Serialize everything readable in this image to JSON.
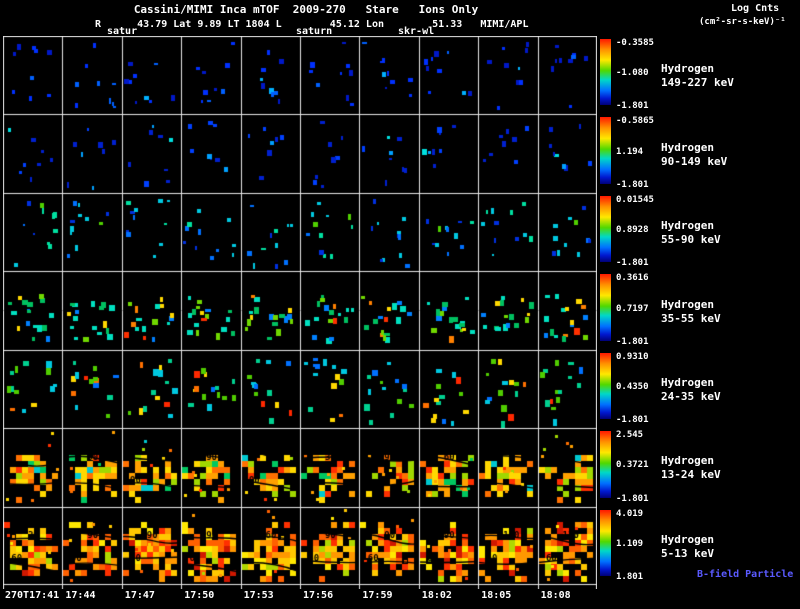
{
  "header": {
    "title": "Cassini/MIMI Inca mTOF  2009-270   Stare   Ions Only",
    "subtitle": "R      43.79 Lat 9.89 LT 1804 L        45.12 Lon        51.33   MIMI/APL",
    "annotations": [
      "satur",
      "saturn",
      "skr-wl"
    ],
    "legend_title": "Log Cnts",
    "legend_units": "(cm²-sr-s-keV)⁻¹"
  },
  "channels": [
    {
      "species": "Hydrogen",
      "energy": "149-227 keV",
      "ticks": [
        "-0.3585",
        "-1.080",
        "-1.801"
      ]
    },
    {
      "species": "Hydrogen",
      "energy": "90-149 keV",
      "ticks": [
        "-0.5865",
        "1.194",
        "-1.801"
      ]
    },
    {
      "species": "Hydrogen",
      "energy": "55-90 keV",
      "ticks": [
        "0.01545",
        "0.8928",
        "-1.801"
      ]
    },
    {
      "species": "Hydrogen",
      "energy": "35-55 keV",
      "ticks": [
        "0.3616",
        "0.7197",
        "-1.801"
      ]
    },
    {
      "species": "Hydrogen",
      "energy": "24-35 keV",
      "ticks": [
        "0.9310",
        "0.4350",
        "-1.801"
      ]
    },
    {
      "species": "Hydrogen",
      "energy": "13-24 keV",
      "ticks": [
        "2.545",
        "0.3721",
        "-1.801"
      ]
    },
    {
      "species": "Hydrogen",
      "energy": "5-13 keV",
      "ticks": [
        "4.019",
        "1.109",
        "1.801"
      ]
    }
  ],
  "time_axis": [
    "270T17:41",
    "17:44",
    "17:47",
    "17:50",
    "17:53",
    "17:56",
    "17:59",
    "18:02",
    "18:05",
    "18:08"
  ],
  "footer": {
    "bfield_label": "B-field Particle Flow"
  },
  "contour_labels": {
    "13_24": [
      [],
      [
        "60"
      ],
      [
        "30",
        "90"
      ],
      [
        "90"
      ],
      [
        "60",
        "90"
      ],
      [
        "30"
      ],
      [
        "90"
      ],
      [
        "60"
      ],
      [],
      [
        "60"
      ]
    ],
    "5_13": [
      [
        "30",
        "60"
      ],
      [
        "90",
        "60"
      ],
      [
        "90",
        "60"
      ],
      [
        "90",
        "60"
      ],
      [
        "60"
      ],
      [
        "90",
        "60"
      ],
      [
        "90",
        "60"
      ],
      [
        "90",
        "60"
      ],
      [
        "120",
        "60"
      ],
      [
        "120",
        "60"
      ]
    ]
  },
  "chart_data": {
    "type": "heatmap",
    "title": "Cassini/MIMI Inca mTOF 2009-270 Stare Ions Only",
    "subtitle_values": {
      "R": "43.79",
      "Lat": "9.89",
      "LT": "1804",
      "L": "45.12",
      "Lon": "51.33",
      "source": "MIMI/APL"
    },
    "units": "Log Cnts (cm²-sr-s-keV)⁻¹",
    "colorscale": "rainbow (red=high, blue=low)",
    "layout": "7 energy channels (rows) x 10 time frames (columns), each frame an INCA stare image",
    "x": [
      "270T17:41",
      "17:44",
      "17:47",
      "17:50",
      "17:53",
      "17:56",
      "17:59",
      "18:02",
      "18:05",
      "18:08"
    ],
    "rows": [
      {
        "channel": "Hydrogen 149-227 keV",
        "scale_ticks": [
          -0.3585,
          -1.08,
          -1.801
        ],
        "intensity": "sparse low counts, blue speckles"
      },
      {
        "channel": "Hydrogen 90-149 keV",
        "scale_ticks": [
          -0.5865,
          1.194,
          -1.801
        ],
        "intensity": "sparse low counts, blue speckles"
      },
      {
        "channel": "Hydrogen 55-90 keV",
        "scale_ticks": [
          0.01545,
          0.8928,
          -1.801
        ],
        "intensity": "sparse low-mid counts, blue/cyan speckles"
      },
      {
        "channel": "Hydrogen 35-55 keV",
        "scale_ticks": [
          0.3616,
          0.7197,
          -1.801
        ],
        "intensity": "scattered mid counts band, cyan/green/yellow"
      },
      {
        "channel": "Hydrogen 24-35 keV",
        "scale_ticks": [
          0.931,
          0.435,
          -1.801
        ],
        "intensity": "scattered mid counts, green/yellow with some orange"
      },
      {
        "channel": "Hydrogen 13-24 keV",
        "scale_ticks": [
          2.545,
          0.3721,
          -1.801
        ],
        "intensity": "dense high counts band, yellow/orange"
      },
      {
        "channel": "Hydrogen 5-13 keV",
        "scale_ticks": [
          4.019,
          1.109,
          1.801
        ],
        "intensity": "dense highest counts, orange/red filling frames"
      }
    ],
    "contour_overlay": "B-field pitch-angle contours labeled 30/60/90/120 on the two lowest-energy channels"
  }
}
